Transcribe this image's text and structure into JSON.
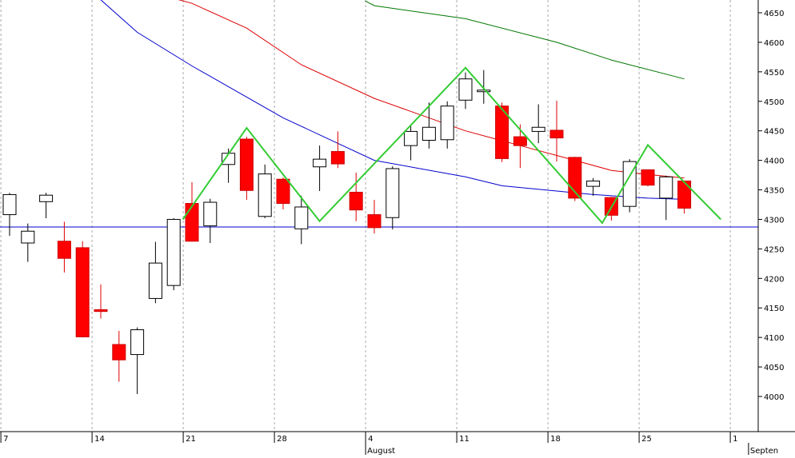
{
  "chart_data": {
    "type": "candlestick",
    "title": "",
    "xlabel": "",
    "ylabel": "",
    "ylim": [
      3960,
      4670
    ],
    "y_ticks": [
      4000,
      4050,
      4100,
      4150,
      4200,
      4250,
      4300,
      4350,
      4400,
      4450,
      4500,
      4550,
      4600,
      4650
    ],
    "x_ticks": [
      {
        "index": 0,
        "label": "7"
      },
      {
        "index": 5,
        "label": "14"
      },
      {
        "index": 10,
        "label": "21"
      },
      {
        "index": 15,
        "label": "28"
      },
      {
        "index": 20,
        "label": "4"
      },
      {
        "index": 25,
        "label": "11"
      },
      {
        "index": 30,
        "label": "18"
      },
      {
        "index": 35,
        "label": "25"
      },
      {
        "index": 40,
        "label": "1"
      }
    ],
    "month_labels": [
      {
        "index": 19,
        "label": "August"
      },
      {
        "index": 40,
        "label": "Septen"
      }
    ],
    "grid": true,
    "candles": [
      {
        "o": 4308,
        "h": 4345,
        "l": 4272,
        "c": 4342
      },
      {
        "o": 4260,
        "h": 4293,
        "l": 4228,
        "c": 4280
      },
      {
        "o": 4330,
        "h": 4345,
        "l": 4302,
        "c": 4341
      },
      {
        "o": 4263,
        "h": 4296,
        "l": 4210,
        "c": 4234
      },
      {
        "o": 4252,
        "h": 4263,
        "l": 4100,
        "c": 4101
      },
      {
        "o": 4147,
        "h": 4190,
        "l": 4132,
        "c": 4144
      },
      {
        "o": 4088,
        "h": 4111,
        "l": 4025,
        "c": 4062
      },
      {
        "o": 4071,
        "h": 4117,
        "l": 4004,
        "c": 4113
      },
      {
        "o": 4166,
        "h": 4262,
        "l": 4158,
        "c": 4226
      },
      {
        "o": 4188,
        "h": 4302,
        "l": 4180,
        "c": 4300
      },
      {
        "o": 4327,
        "h": 4363,
        "l": 4263,
        "c": 4263
      },
      {
        "o": 4289,
        "h": 4335,
        "l": 4260,
        "c": 4329
      },
      {
        "o": 4393,
        "h": 4420,
        "l": 4362,
        "c": 4412
      },
      {
        "o": 4436,
        "h": 4440,
        "l": 4333,
        "c": 4349
      },
      {
        "o": 4305,
        "h": 4393,
        "l": 4302,
        "c": 4377
      },
      {
        "o": 4368,
        "h": 4371,
        "l": 4317,
        "c": 4327
      },
      {
        "o": 4284,
        "h": 4340,
        "l": 4258,
        "c": 4321
      },
      {
        "o": 4389,
        "h": 4425,
        "l": 4348,
        "c": 4402
      },
      {
        "o": 4415,
        "h": 4449,
        "l": 4387,
        "c": 4394
      },
      {
        "o": 4346,
        "h": 4379,
        "l": 4297,
        "c": 4316
      },
      {
        "o": 4308,
        "h": 4333,
        "l": 4276,
        "c": 4286
      },
      {
        "o": 4303,
        "h": 4390,
        "l": 4283,
        "c": 4386
      },
      {
        "o": 4425,
        "h": 4458,
        "l": 4400,
        "c": 4449
      },
      {
        "o": 4434,
        "h": 4498,
        "l": 4420,
        "c": 4456
      },
      {
        "o": 4435,
        "h": 4500,
        "l": 4420,
        "c": 4492
      },
      {
        "o": 4502,
        "h": 4549,
        "l": 4487,
        "c": 4538
      },
      {
        "o": 4519,
        "h": 4553,
        "l": 4496,
        "c": 4519
      },
      {
        "o": 4492,
        "h": 4498,
        "l": 4397,
        "c": 4403
      },
      {
        "o": 4440,
        "h": 4461,
        "l": 4387,
        "c": 4425
      },
      {
        "o": 4449,
        "h": 4495,
        "l": 4429,
        "c": 4456
      },
      {
        "o": 4451,
        "h": 4501,
        "l": 4398,
        "c": 4438
      },
      {
        "o": 4405,
        "h": 4406,
        "l": 4331,
        "c": 4336
      },
      {
        "o": 4356,
        "h": 4370,
        "l": 4340,
        "c": 4365
      },
      {
        "o": 4337,
        "h": 4338,
        "l": 4298,
        "c": 4307
      },
      {
        "o": 4322,
        "h": 4402,
        "l": 4312,
        "c": 4398
      },
      {
        "o": 4384,
        "h": 4384,
        "l": 4356,
        "c": 4358
      },
      {
        "o": 4336,
        "h": 4374,
        "l": 4299,
        "c": 4372
      },
      {
        "o": 4365,
        "h": 4365,
        "l": 4310,
        "c": 4319
      }
    ],
    "moving_averages": [
      {
        "color": "#0000cc",
        "points": [
          [
            4.2,
            4688
          ],
          [
            5,
            4672
          ],
          [
            7,
            4617
          ],
          [
            10,
            4560
          ],
          [
            15,
            4472
          ],
          [
            20,
            4400
          ],
          [
            25,
            4372
          ],
          [
            27,
            4357
          ],
          [
            30,
            4348
          ],
          [
            32,
            4342
          ],
          [
            35,
            4336
          ],
          [
            37,
            4334
          ]
        ]
      },
      {
        "color": "#dd0000",
        "points": [
          [
            7.4,
            4688
          ],
          [
            10,
            4666
          ],
          [
            13,
            4624
          ],
          [
            16,
            4562
          ],
          [
            20,
            4505
          ],
          [
            25,
            4450
          ],
          [
            28,
            4425
          ],
          [
            31,
            4400
          ],
          [
            33,
            4383
          ],
          [
            35,
            4376
          ],
          [
            37,
            4370
          ]
        ]
      },
      {
        "color": "#007700",
        "points": [
          [
            19.5,
            4670
          ],
          [
            20,
            4662
          ],
          [
            25,
            4640
          ],
          [
            30,
            4600
          ],
          [
            33,
            4570
          ],
          [
            37,
            4538
          ]
        ]
      }
    ],
    "zigzag": {
      "color": "#33cc33",
      "points": [
        [
          9.5,
          4300
        ],
        [
          13,
          4455
        ],
        [
          17,
          4297
        ],
        [
          25,
          4557
        ],
        [
          32.5,
          4294
        ],
        [
          35,
          4426
        ],
        [
          39,
          4300
        ]
      ]
    },
    "horizontal_line": {
      "value": 4287,
      "color": "#0000cc"
    }
  }
}
